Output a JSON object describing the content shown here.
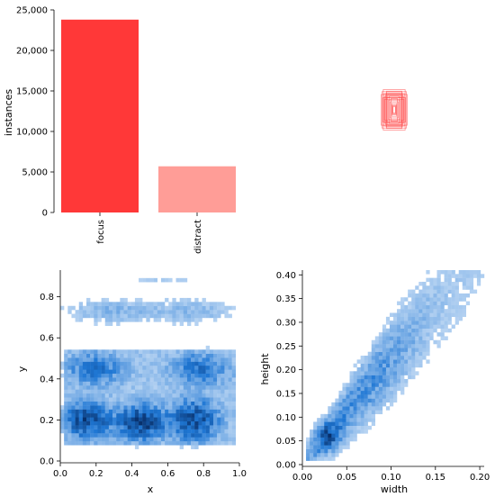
{
  "chart_data": [
    {
      "type": "bar",
      "ylabel": "instances",
      "categories": [
        "focus",
        "distract"
      ],
      "values": [
        23800,
        5700
      ],
      "colors": [
        "#ff3838",
        "#ff9d97"
      ],
      "ylim": [
        0,
        25000
      ],
      "yticks": [
        "0",
        "5,000",
        "10,000",
        "15,000",
        "20,000",
        "25,000"
      ],
      "ytick_values": [
        0,
        5000,
        10000,
        15000,
        20000,
        25000
      ],
      "grid": false
    },
    {
      "type": "box-overlay",
      "description_note": "",
      "box_color": "#ff3838",
      "center": [
        0.5,
        0.5
      ],
      "boxes_wh": [
        [
          0.3,
          0.45
        ],
        [
          0.26,
          0.4
        ],
        [
          0.22,
          0.36
        ],
        [
          0.28,
          0.3
        ],
        [
          0.2,
          0.42
        ],
        [
          0.18,
          0.3
        ],
        [
          0.24,
          0.26
        ],
        [
          0.16,
          0.38
        ],
        [
          0.14,
          0.24
        ],
        [
          0.12,
          0.34
        ],
        [
          0.1,
          0.2
        ],
        [
          0.08,
          0.28
        ],
        [
          0.06,
          0.16
        ],
        [
          0.05,
          0.12
        ],
        [
          0.04,
          0.1
        ],
        [
          0.03,
          0.08
        ],
        [
          0.32,
          0.38
        ],
        [
          0.27,
          0.5
        ],
        [
          0.19,
          0.46
        ],
        [
          0.23,
          0.33
        ]
      ]
    },
    {
      "type": "heatmap",
      "xlabel": "x",
      "ylabel": "y",
      "xlim": [
        0.0,
        1.0
      ],
      "ylim": [
        0.0,
        0.93
      ],
      "xticks": [
        "0.0",
        "0.2",
        "0.4",
        "0.6",
        "0.8",
        "1.0"
      ],
      "xtick_values": [
        0.0,
        0.2,
        0.4,
        0.6,
        0.8,
        1.0
      ],
      "yticks": [
        "0.0",
        "0.2",
        "0.4",
        "0.6",
        "0.8"
      ],
      "ytick_values": [
        0.0,
        0.2,
        0.4,
        0.6,
        0.8
      ],
      "colormap": [
        "#e3eefb",
        "#1f77d4",
        "#08306b"
      ],
      "clusters": [
        {
          "x": 0.15,
          "y": 0.2,
          "sx": 0.08,
          "sy": 0.05,
          "w": 1.0
        },
        {
          "x": 0.45,
          "y": 0.19,
          "sx": 0.08,
          "sy": 0.05,
          "w": 1.1
        },
        {
          "x": 0.75,
          "y": 0.2,
          "sx": 0.08,
          "sy": 0.06,
          "w": 0.9
        },
        {
          "x": 0.2,
          "y": 0.45,
          "sx": 0.1,
          "sy": 0.05,
          "w": 0.45
        },
        {
          "x": 0.78,
          "y": 0.45,
          "sx": 0.1,
          "sy": 0.05,
          "w": 0.45
        },
        {
          "x": 0.3,
          "y": 0.73,
          "sx": 0.18,
          "sy": 0.04,
          "w": 0.2
        },
        {
          "x": 0.75,
          "y": 0.73,
          "sx": 0.15,
          "sy": 0.04,
          "w": 0.18
        },
        {
          "x": 0.55,
          "y": 0.88,
          "sx": 0.2,
          "sy": 0.02,
          "w": 0.08
        }
      ]
    },
    {
      "type": "heatmap",
      "xlabel": "width",
      "ylabel": "height",
      "xlim": [
        0.0,
        0.205
      ],
      "ylim": [
        0.0,
        0.41
      ],
      "xticks": [
        "0.00",
        "0.05",
        "0.10",
        "0.15",
        "0.20"
      ],
      "xtick_values": [
        0.0,
        0.05,
        0.1,
        0.15,
        0.2
      ],
      "yticks": [
        "0.00",
        "0.05",
        "0.10",
        "0.15",
        "0.20",
        "0.25",
        "0.30",
        "0.35",
        "0.40"
      ],
      "ytick_values": [
        0.0,
        0.05,
        0.1,
        0.15,
        0.2,
        0.25,
        0.3,
        0.35,
        0.4
      ],
      "colormap": [
        "#e3eefb",
        "#1f77d4",
        "#08306b"
      ],
      "trend": {
        "slope": 2.2,
        "intercept": 0.0
      },
      "core": {
        "x": 0.028,
        "y": 0.06
      }
    }
  ]
}
